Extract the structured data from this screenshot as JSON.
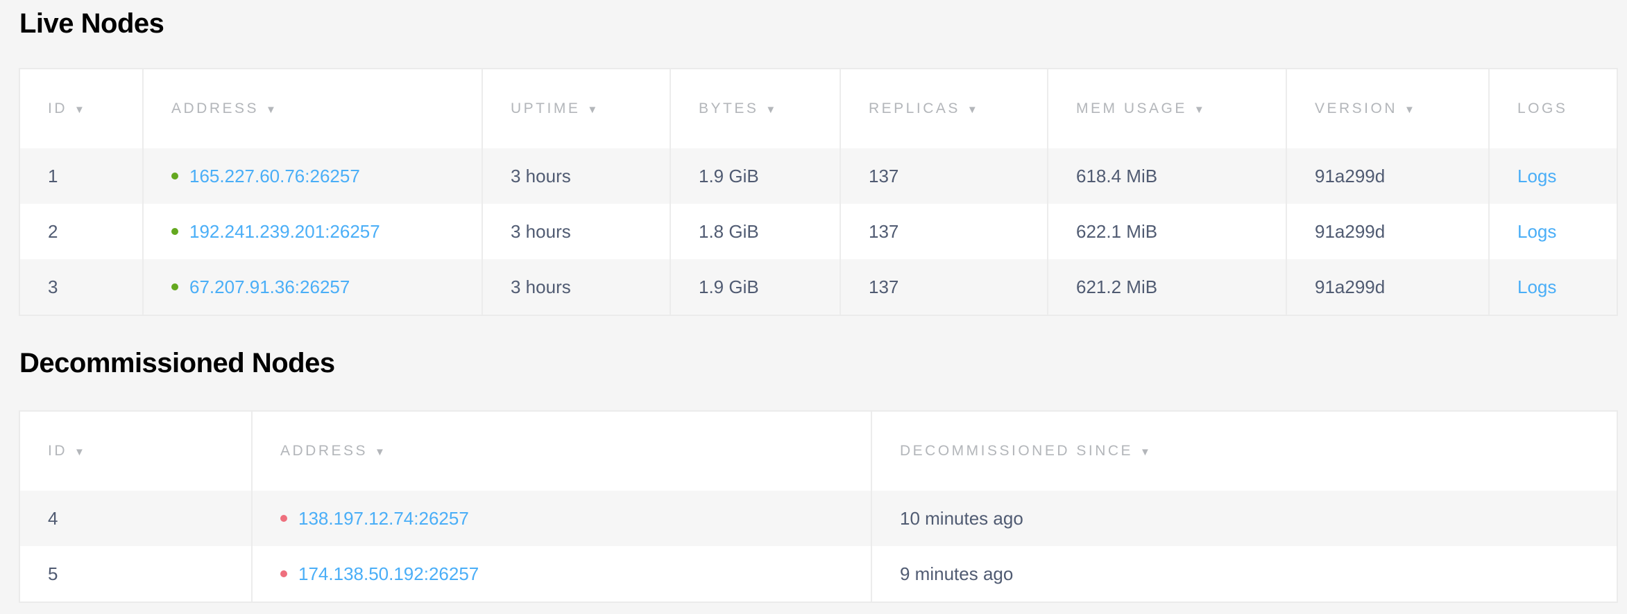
{
  "live": {
    "title": "Live Nodes",
    "columns": [
      "ID",
      "Address",
      "Uptime",
      "Bytes",
      "Replicas",
      "Mem Usage",
      "Version",
      "Logs"
    ],
    "sort_icon": "▼",
    "rows": [
      {
        "id": "1",
        "address": "165.227.60.76:26257",
        "uptime": "3 hours",
        "bytes": "1.9 GiB",
        "replicas": "137",
        "mem": "618.4 MiB",
        "version": "91a299d",
        "logs": "Logs"
      },
      {
        "id": "2",
        "address": "192.241.239.201:26257",
        "uptime": "3 hours",
        "bytes": "1.8 GiB",
        "replicas": "137",
        "mem": "622.1 MiB",
        "version": "91a299d",
        "logs": "Logs"
      },
      {
        "id": "3",
        "address": "67.207.91.36:26257",
        "uptime": "3 hours",
        "bytes": "1.9 GiB",
        "replicas": "137",
        "mem": "621.2 MiB",
        "version": "91a299d",
        "logs": "Logs"
      }
    ],
    "status_color": "#64a81f"
  },
  "decommissioned": {
    "title": "Decommissioned Nodes",
    "columns": [
      "ID",
      "Address",
      "Decommissioned Since"
    ],
    "rows": [
      {
        "id": "4",
        "address": "138.197.12.74:26257",
        "since": "10 minutes ago"
      },
      {
        "id": "5",
        "address": "174.138.50.192:26257",
        "since": "9 minutes ago"
      }
    ],
    "status_color": "#ee6f7d"
  },
  "colors": {
    "link": "#4aaef7",
    "text": "#505b72",
    "header": "#b3b6ba",
    "background": "#f5f5f5"
  }
}
